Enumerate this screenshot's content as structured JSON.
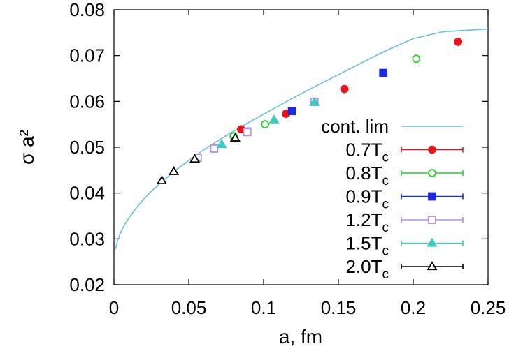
{
  "chart_data": {
    "type": "scatter",
    "title": "",
    "xlabel": "a, fm",
    "ylabel": "σ a²",
    "xlim": [
      0,
      0.25
    ],
    "ylim": [
      0.02,
      0.08
    ],
    "xticks": [
      "0",
      "0.05",
      "0.1",
      "0.15",
      "0.2",
      "0.25"
    ],
    "yticks": [
      "0.02",
      "0.03",
      "0.04",
      "0.05",
      "0.06",
      "0.07",
      "0.08"
    ],
    "grid": false,
    "legend_position": "bottom-right",
    "fit_curve": {
      "name": "cont. lim",
      "color": "#6bbfdc",
      "points": [
        [
          0.001,
          0.0278
        ],
        [
          0.0025,
          0.0297
        ],
        [
          0.005,
          0.0318
        ],
        [
          0.0075,
          0.0333
        ],
        [
          0.01,
          0.0346
        ],
        [
          0.015,
          0.0368
        ],
        [
          0.02,
          0.0387
        ],
        [
          0.025,
          0.0404
        ],
        [
          0.03,
          0.0419
        ],
        [
          0.04,
          0.0447
        ],
        [
          0.05,
          0.0471
        ],
        [
          0.06,
          0.0494
        ],
        [
          0.07,
          0.0515
        ],
        [
          0.08,
          0.0535
        ],
        [
          0.09,
          0.0554
        ],
        [
          0.1,
          0.0572
        ],
        [
          0.12,
          0.0608
        ],
        [
          0.14,
          0.0642
        ],
        [
          0.16,
          0.0675
        ],
        [
          0.18,
          0.0708
        ],
        [
          0.2,
          0.0737
        ],
        [
          0.22,
          0.0752
        ],
        [
          0.25,
          0.0758
        ]
      ]
    },
    "series": [
      {
        "name": "0.7T",
        "subscript": "c",
        "color": "#e8161b",
        "marker": "circle-filled",
        "points": [
          [
            0.085,
            0.0539
          ],
          [
            0.115,
            0.0573
          ],
          [
            0.154,
            0.0627
          ],
          [
            0.23,
            0.073
          ]
        ]
      },
      {
        "name": "0.8T",
        "subscript": "c",
        "color": "#27d22b",
        "marker": "circle-open",
        "points": [
          [
            0.08,
            0.0524
          ],
          [
            0.101,
            0.055
          ],
          [
            0.202,
            0.0693
          ]
        ]
      },
      {
        "name": "0.9T",
        "subscript": "c",
        "color": "#1c2be0",
        "marker": "square-filled",
        "points": [
          [
            0.089,
            0.0534
          ],
          [
            0.119,
            0.0579
          ],
          [
            0.18,
            0.0662
          ]
        ]
      },
      {
        "name": "1.2T",
        "subscript": "c",
        "color": "#b38fe6",
        "marker": "square-open",
        "points": [
          [
            0.056,
            0.0477
          ],
          [
            0.067,
            0.0497
          ],
          [
            0.089,
            0.0533
          ],
          [
            0.134,
            0.0599
          ]
        ]
      },
      {
        "name": "1.5T",
        "subscript": "c",
        "color": "#3fcbc0",
        "marker": "triangle-filled",
        "points": [
          [
            0.072,
            0.0506
          ],
          [
            0.107,
            0.056
          ],
          [
            0.134,
            0.0598
          ]
        ]
      },
      {
        "name": "2.0T",
        "subscript": "c",
        "color": "#000000",
        "marker": "triangle-open",
        "points": [
          [
            0.032,
            0.0427
          ],
          [
            0.04,
            0.0447
          ],
          [
            0.054,
            0.0474
          ],
          [
            0.081,
            0.052
          ]
        ]
      }
    ]
  }
}
